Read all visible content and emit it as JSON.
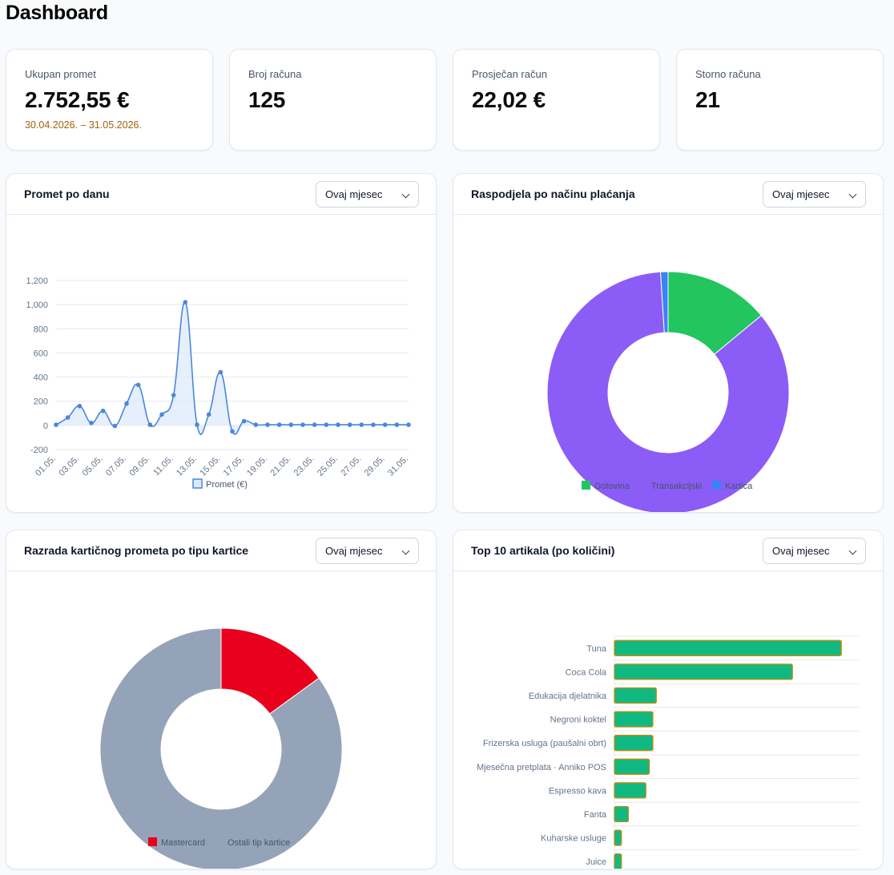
{
  "page": {
    "title": "Dashboard"
  },
  "stats": [
    {
      "label": "Ukupan promet",
      "value": "2.752,55 €",
      "sub": "30.04.2026. – 31.05.2026."
    },
    {
      "label": "Broj računa",
      "value": "125"
    },
    {
      "label": "Prosječan račun",
      "value": "22,02 €"
    },
    {
      "label": "Storno računa",
      "value": "21"
    }
  ],
  "panels": {
    "daily": {
      "title": "Promet po danu",
      "period": "Ovaj mjesec"
    },
    "payment": {
      "title": "Raspodjela po načinu plaćanja",
      "period": "Ovaj mjesec"
    },
    "card": {
      "title": "Razrada kartičnog prometa po tipu kartice",
      "period": "Ovaj mjesec"
    },
    "top": {
      "title": "Top 10 artikala (po količini)",
      "period": "Ovaj mjesec"
    }
  },
  "colors": {
    "line": "#4a87dd",
    "line_fill": "#dde9fb",
    "gotovina": "#22c55e",
    "transakcijski": "#8b5cf6",
    "kartica": "#3b82f6",
    "mastercard": "#e8001c",
    "ostali": "#94a3b8",
    "bar": "#10b981",
    "bar_border": "#ca8a04"
  },
  "chart_data": [
    {
      "type": "line",
      "x": [
        "01.05.",
        "02.05.",
        "03.05.",
        "04.05.",
        "05.05.",
        "06.05.",
        "07.05.",
        "08.05.",
        "09.05.",
        "10.05.",
        "11.05.",
        "12.05.",
        "13.05.",
        "14.05.",
        "15.05.",
        "16.05.",
        "17.05.",
        "18.05.",
        "19.05.",
        "20.05.",
        "21.05.",
        "22.05.",
        "23.05.",
        "24.05.",
        "25.05.",
        "26.05.",
        "27.05.",
        "28.05.",
        "29.05.",
        "30.05.",
        "31.05."
      ],
      "tick_labels": [
        "01.05.",
        "03.05.",
        "05.05.",
        "07.05.",
        "09.05.",
        "11.05.",
        "13.05.",
        "15.05.",
        "17.05.",
        "19.05.",
        "21.05.",
        "23.05.",
        "25.05.",
        "27.05.",
        "29.05.",
        "31.05."
      ],
      "series": [
        {
          "name": "Promet (€)",
          "values": [
            5,
            65,
            160,
            20,
            120,
            -5,
            180,
            335,
            5,
            90,
            250,
            1020,
            5,
            90,
            440,
            -50,
            35,
            5,
            5,
            5,
            5,
            5,
            5,
            5,
            5,
            5,
            5,
            5,
            5,
            5,
            5
          ]
        }
      ],
      "ylim": [
        -200,
        1200
      ],
      "yticks": [
        "-200",
        "0",
        "200",
        "400",
        "600",
        "800",
        "1,000",
        "1,200"
      ],
      "ytick_values": [
        -200,
        0,
        200,
        400,
        600,
        800,
        1000,
        1200
      ],
      "grid": true,
      "legend": "bottom"
    },
    {
      "type": "pie",
      "donut": true,
      "labels": [
        "Gotovina",
        "Transakcijski",
        "Kartica"
      ],
      "values": [
        14,
        85,
        1
      ],
      "legend": "bottom"
    },
    {
      "type": "pie",
      "donut": true,
      "labels": [
        "Mastercard",
        "Ostali tip kartice"
      ],
      "values": [
        15,
        85
      ],
      "legend": "bottom"
    },
    {
      "type": "bar",
      "orientation": "horizontal",
      "categories": [
        "Tuna",
        "Coca Cola",
        "Edukacija djelatnika",
        "Negroni koktel",
        "Frizerska usluga (paušalni obrt)",
        "Mjesečna pretplata · Anniko POS",
        "Espresso kava",
        "Fanta",
        "Kuharske usluge",
        "Juice"
      ],
      "values": [
        65,
        51,
        12,
        11,
        11,
        10,
        9,
        4,
        2,
        2
      ],
      "xlim": [
        0,
        70
      ],
      "xticks": [
        "0",
        "10",
        "20",
        "30",
        "40",
        "50",
        "60",
        "70"
      ],
      "xtick_values": [
        0,
        10,
        20,
        30,
        40,
        50,
        60,
        70
      ],
      "grid": true
    }
  ]
}
